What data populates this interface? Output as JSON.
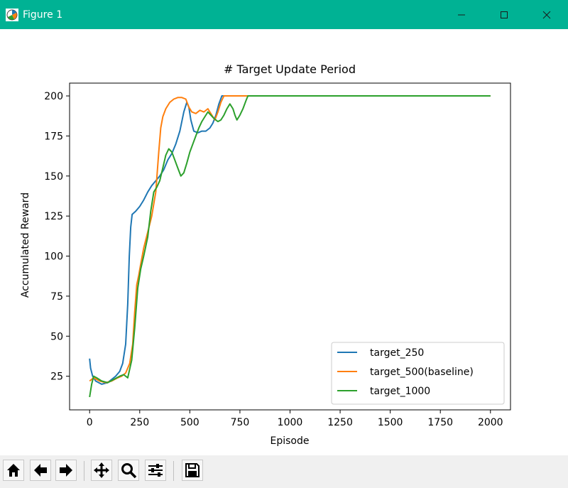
{
  "window": {
    "title": "Figure 1",
    "accent": "#00b294",
    "icons": [
      "app-icon",
      "minimize-icon",
      "maximize-icon",
      "close-icon"
    ]
  },
  "toolbar": {
    "buttons": [
      "home-icon",
      "back-arrow-icon",
      "forward-arrow-icon",
      "pan-icon",
      "zoom-icon",
      "configure-subplots-icon",
      "save-icon"
    ]
  },
  "chart_data": {
    "type": "line",
    "title": "# Target Update Period",
    "xlabel": "Episode",
    "ylabel": "Accumulated Reward",
    "xlim": [
      -100,
      2100
    ],
    "ylim": [
      4,
      208
    ],
    "xticks": [
      0,
      250,
      500,
      750,
      1000,
      1250,
      1500,
      1750,
      2000
    ],
    "yticks": [
      25,
      50,
      75,
      100,
      125,
      150,
      175,
      200
    ],
    "grid": false,
    "legend_position": "lower-right",
    "series": [
      {
        "name": "target_250",
        "color": "#1f77b4",
        "points": [
          [
            0,
            36
          ],
          [
            5,
            30
          ],
          [
            15,
            25
          ],
          [
            30,
            22
          ],
          [
            60,
            20
          ],
          [
            90,
            21
          ],
          [
            110,
            23
          ],
          [
            130,
            25
          ],
          [
            150,
            28
          ],
          [
            165,
            33
          ],
          [
            180,
            45
          ],
          [
            190,
            70
          ],
          [
            198,
            100
          ],
          [
            205,
            118
          ],
          [
            212,
            126
          ],
          [
            230,
            128
          ],
          [
            250,
            131
          ],
          [
            270,
            135
          ],
          [
            290,
            140
          ],
          [
            310,
            144
          ],
          [
            330,
            147
          ],
          [
            350,
            150
          ],
          [
            370,
            154
          ],
          [
            390,
            160
          ],
          [
            410,
            164
          ],
          [
            430,
            170
          ],
          [
            450,
            178
          ],
          [
            470,
            190
          ],
          [
            485,
            196
          ],
          [
            495,
            193
          ],
          [
            505,
            185
          ],
          [
            520,
            178
          ],
          [
            540,
            177
          ],
          [
            560,
            178
          ],
          [
            580,
            178
          ],
          [
            600,
            180
          ],
          [
            615,
            183
          ],
          [
            630,
            188
          ],
          [
            645,
            195
          ],
          [
            660,
            200
          ],
          [
            700,
            200
          ],
          [
            800,
            200
          ],
          [
            2000,
            200
          ]
        ]
      },
      {
        "name": "target_500(baseline)",
        "color": "#ff7f0e",
        "points": [
          [
            0,
            22
          ],
          [
            20,
            24
          ],
          [
            50,
            22
          ],
          [
            80,
            21
          ],
          [
            110,
            22
          ],
          [
            140,
            24
          ],
          [
            160,
            25
          ],
          [
            180,
            27
          ],
          [
            200,
            33
          ],
          [
            215,
            45
          ],
          [
            225,
            65
          ],
          [
            235,
            82
          ],
          [
            245,
            88
          ],
          [
            255,
            95
          ],
          [
            270,
            105
          ],
          [
            290,
            115
          ],
          [
            310,
            125
          ],
          [
            330,
            140
          ],
          [
            345,
            165
          ],
          [
            355,
            180
          ],
          [
            365,
            187
          ],
          [
            380,
            192
          ],
          [
            400,
            196
          ],
          [
            420,
            198
          ],
          [
            440,
            199
          ],
          [
            460,
            199
          ],
          [
            480,
            198
          ],
          [
            495,
            193
          ],
          [
            510,
            190
          ],
          [
            530,
            189
          ],
          [
            550,
            191
          ],
          [
            570,
            190
          ],
          [
            590,
            192
          ],
          [
            610,
            188
          ],
          [
            625,
            185
          ],
          [
            640,
            190
          ],
          [
            655,
            196
          ],
          [
            670,
            200
          ],
          [
            700,
            200
          ],
          [
            800,
            200
          ],
          [
            2000,
            200
          ]
        ]
      },
      {
        "name": "target_1000",
        "color": "#2ca02c",
        "points": [
          [
            0,
            12
          ],
          [
            10,
            20
          ],
          [
            20,
            25
          ],
          [
            35,
            24
          ],
          [
            60,
            22
          ],
          [
            90,
            21
          ],
          [
            120,
            23
          ],
          [
            150,
            25
          ],
          [
            170,
            26
          ],
          [
            190,
            24
          ],
          [
            210,
            35
          ],
          [
            225,
            55
          ],
          [
            240,
            80
          ],
          [
            255,
            92
          ],
          [
            270,
            100
          ],
          [
            290,
            112
          ],
          [
            305,
            128
          ],
          [
            320,
            140
          ],
          [
            335,
            143
          ],
          [
            350,
            147
          ],
          [
            365,
            155
          ],
          [
            380,
            163
          ],
          [
            395,
            167
          ],
          [
            410,
            165
          ],
          [
            425,
            160
          ],
          [
            440,
            155
          ],
          [
            455,
            150
          ],
          [
            470,
            152
          ],
          [
            485,
            158
          ],
          [
            500,
            165
          ],
          [
            515,
            170
          ],
          [
            530,
            175
          ],
          [
            545,
            180
          ],
          [
            560,
            184
          ],
          [
            575,
            187
          ],
          [
            590,
            190
          ],
          [
            605,
            188
          ],
          [
            620,
            186
          ],
          [
            640,
            184
          ],
          [
            655,
            185
          ],
          [
            670,
            188
          ],
          [
            685,
            192
          ],
          [
            700,
            195
          ],
          [
            715,
            192
          ],
          [
            725,
            188
          ],
          [
            735,
            185
          ],
          [
            750,
            188
          ],
          [
            765,
            192
          ],
          [
            780,
            197
          ],
          [
            790,
            200
          ],
          [
            820,
            200
          ],
          [
            1000,
            200
          ],
          [
            2000,
            200
          ]
        ]
      }
    ]
  }
}
